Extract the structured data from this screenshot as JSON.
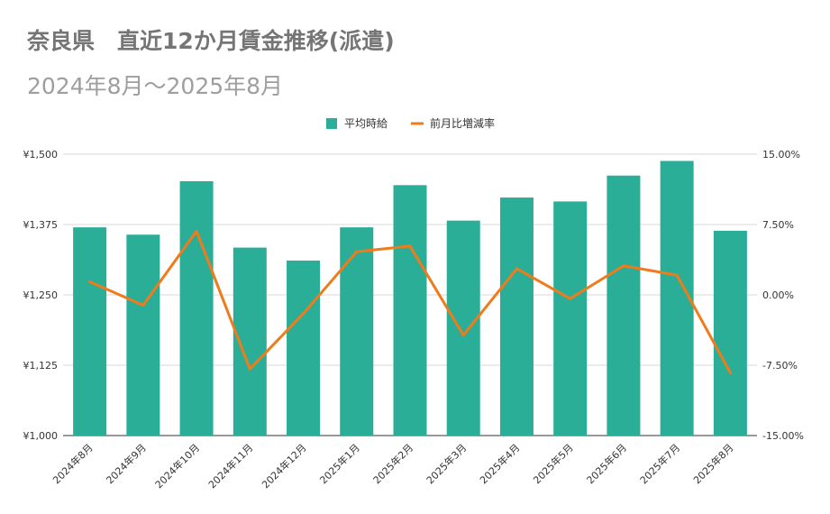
{
  "chart_data": {
    "type": "bar+line",
    "title": "奈良県　直近12か月賃金推移(派遣)",
    "subtitle": "2024年8月〜2025年8月",
    "categories": [
      "2024年8月",
      "2024年9月",
      "2024年10月",
      "2024年11月",
      "2024年12月",
      "2025年1月",
      "2025年2月",
      "2025年3月",
      "2025年4月",
      "2025年5月",
      "2025年6月",
      "2025年7月",
      "2025年8月"
    ],
    "series": [
      {
        "name": "平均時給",
        "type": "bar",
        "axis": "left",
        "color": "#2bae98",
        "values": [
          1370,
          1357,
          1452,
          1334,
          1311,
          1370,
          1445,
          1382,
          1423,
          1416,
          1462,
          1488,
          1364
        ]
      },
      {
        "name": "前月比増減率",
        "type": "line",
        "axis": "right",
        "color": "#f07b1a",
        "values": [
          1.4,
          -1.1,
          6.8,
          -7.9,
          -2.0,
          4.6,
          5.2,
          -4.3,
          2.8,
          -0.4,
          3.1,
          2.1,
          -8.3
        ]
      }
    ],
    "left_axis": {
      "min": 1000,
      "max": 1500,
      "ticks": [
        "¥1,000",
        "¥1,125",
        "¥1,250",
        "¥1,375",
        "¥1,500"
      ]
    },
    "right_axis": {
      "min": -15,
      "max": 15,
      "ticks": [
        "-15.00%",
        "-7.50%",
        "0.00%",
        "7.50%",
        "15.00%"
      ]
    },
    "legend_position": "top-center",
    "grid": true
  }
}
